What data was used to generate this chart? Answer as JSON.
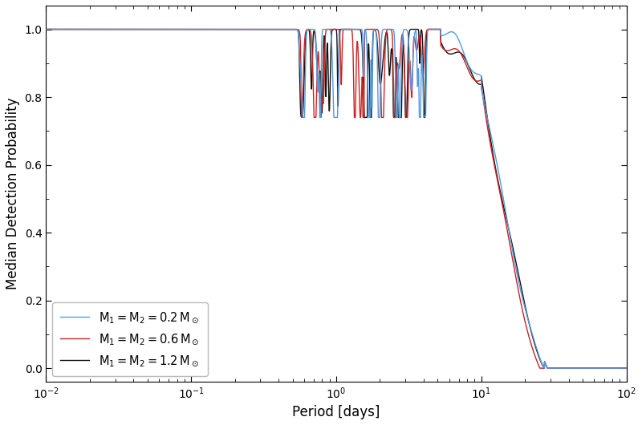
{
  "xlabel": "Period [days]",
  "ylabel": "Median Detection Probability",
  "lines": [
    {
      "label": "$\\mathrm{M}_1 = \\mathrm{M}_2 = 0.2\\,\\mathrm{M}_\\odot$",
      "color": "#5599dd",
      "zorder": 3,
      "lw": 1.0
    },
    {
      "label": "$\\mathrm{M}_1 = \\mathrm{M}_2 = 0.6\\,\\mathrm{M}_\\odot$",
      "color": "#cc2222",
      "zorder": 2,
      "lw": 1.0
    },
    {
      "label": "$\\mathrm{M}_1 = \\mathrm{M}_2 = 1.2\\,\\mathrm{M}_\\odot$",
      "color": "#111111",
      "zorder": 1,
      "lw": 1.0
    }
  ],
  "ylim": [
    -0.04,
    1.07
  ],
  "yticks": [
    0.0,
    0.2,
    0.4,
    0.6,
    0.8,
    1.0
  ]
}
